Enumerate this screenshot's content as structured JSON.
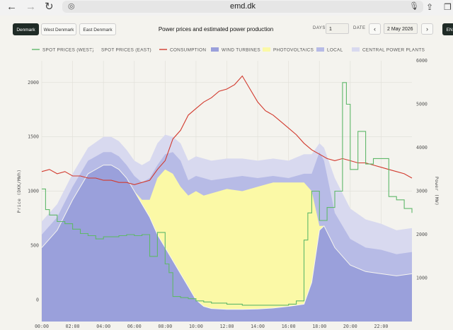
{
  "browser": {
    "url": "emd.dk"
  },
  "toolbar": {
    "regions": [
      "Denmark",
      "West Denmark",
      "East Denmark"
    ],
    "active_region": "Denmark",
    "title": "Power prices and estimated power production",
    "days_label": "DAYS",
    "days_value": "1",
    "date_label": "DATE",
    "date_value": "2 May 2026",
    "lang_label": "EN"
  },
  "colors": {
    "spot_west": "#5fb86a",
    "spot_east": "#f6f5ef",
    "consumption": "#d23a2e",
    "wind": "#9aa0db",
    "pv": "#fbf9a6",
    "local": "#b7bbe6",
    "central": "#d8d9ef"
  },
  "chart_data": {
    "type": "area",
    "legend": [
      "SPOT PRICES (WEST)",
      "SPOT PRICES (EAST)",
      "CONSUMPTION",
      "WIND TURBINES",
      "PHOTOVOLTAICS",
      "LOCAL",
      "CENTRAL POWER PLANTS"
    ],
    "x_ticks": [
      "00:00",
      "02:00",
      "04:00",
      "06:00",
      "08:00",
      "10:00",
      "12:00",
      "14:00",
      "16:00",
      "18:00",
      "20:00",
      "22:00"
    ],
    "xlim": [
      0,
      24
    ],
    "ylabel_left": "Price (DKK/MWh)",
    "ylabel_right": "Power (MW)",
    "ylim_left": [
      -200,
      2200
    ],
    "ylim_right": [
      0,
      6000
    ],
    "yticks_left": [
      0,
      500,
      1000,
      1500,
      2000
    ],
    "yticks_right": [
      1000,
      2000,
      3000,
      4000,
      5000,
      6000
    ],
    "series": [
      {
        "name": "WIND TURBINES",
        "axis": "right",
        "x": [
          0,
          1,
          2,
          3,
          4,
          4.5,
          5,
          5.5,
          6,
          6.5,
          7,
          7.5,
          8,
          8.5,
          9,
          9.5,
          10,
          10.5,
          11,
          12,
          13,
          14,
          15,
          16,
          17,
          17.5,
          18,
          18.3,
          19,
          20,
          21,
          22,
          23,
          24
        ],
        "values": [
          1700,
          2100,
          2800,
          3400,
          3600,
          3600,
          3500,
          3300,
          3000,
          2700,
          2400,
          2000,
          1700,
          1400,
          1100,
          800,
          500,
          350,
          300,
          280,
          280,
          290,
          310,
          350,
          400,
          900,
          2100,
          2200,
          1700,
          1300,
          1150,
          1100,
          1050,
          1100
        ]
      },
      {
        "name": "PHOTOVOLTAICS",
        "axis": "right",
        "x": [
          0,
          1,
          2,
          3,
          4,
          4.5,
          5,
          5.5,
          6,
          6.5,
          7,
          7.5,
          8,
          8.5,
          9,
          9.5,
          10,
          10.5,
          11,
          12,
          13,
          14,
          15,
          16,
          17,
          17.5,
          18,
          18.3,
          19,
          20,
          21,
          22,
          23,
          24
        ],
        "values": [
          1700,
          2100,
          2800,
          3400,
          3600,
          3600,
          3500,
          3300,
          3000,
          2800,
          2800,
          3300,
          3500,
          3400,
          3100,
          2900,
          3000,
          2900,
          2950,
          3050,
          3000,
          3100,
          3200,
          3200,
          3200,
          3000,
          2200,
          2200,
          1700,
          1300,
          1150,
          1100,
          1050,
          1100
        ]
      },
      {
        "name": "LOCAL",
        "axis": "right",
        "x": [
          0,
          1,
          2,
          3,
          4,
          4.5,
          5,
          5.5,
          6,
          6.5,
          7,
          7.5,
          8,
          8.5,
          9,
          9.5,
          10,
          10.5,
          11,
          12,
          13,
          14,
          15,
          16,
          17,
          17.5,
          18,
          18.3,
          19,
          20,
          21,
          22,
          23,
          24
        ],
        "values": [
          2000,
          2400,
          3100,
          3700,
          3900,
          3900,
          3800,
          3600,
          3350,
          3200,
          3300,
          3600,
          3850,
          3900,
          3700,
          3250,
          3350,
          3300,
          3250,
          3300,
          3350,
          3300,
          3350,
          3300,
          3400,
          3400,
          3900,
          3700,
          2500,
          1900,
          1700,
          1650,
          1550,
          1600
        ]
      },
      {
        "name": "CENTRAL POWER PLANTS",
        "axis": "right",
        "x": [
          0,
          1,
          2,
          3,
          4,
          4.5,
          5,
          5.5,
          6,
          6.5,
          7,
          7.5,
          8,
          8.5,
          9,
          9.5,
          10,
          10.5,
          11,
          12,
          13,
          14,
          15,
          16,
          17,
          17.5,
          18,
          18.3,
          19,
          20,
          21,
          22,
          23,
          24
        ],
        "values": [
          2300,
          2700,
          3400,
          4000,
          4250,
          4250,
          4150,
          3950,
          3700,
          3600,
          3700,
          4100,
          4300,
          4250,
          4100,
          3700,
          3800,
          3750,
          3700,
          3750,
          3750,
          3700,
          3750,
          3700,
          3850,
          3850,
          4100,
          4000,
          3300,
          2600,
          2350,
          2250,
          2100,
          2150
        ]
      },
      {
        "name": "CONSUMPTION",
        "axis": "right",
        "x": [
          0,
          0.5,
          1,
          1.5,
          2,
          2.5,
          3,
          3.5,
          4,
          4.5,
          5,
          5.5,
          6,
          6.5,
          7,
          7.5,
          8,
          8.5,
          9,
          9.5,
          10,
          10.5,
          11,
          11.5,
          12,
          12.5,
          13,
          13.5,
          14,
          14.5,
          15,
          15.5,
          16,
          16.5,
          17,
          17.5,
          18,
          18.5,
          19,
          19.5,
          20,
          20.5,
          21,
          21.5,
          22,
          22.5,
          23,
          23.5,
          24
        ],
        "values": [
          3450,
          3500,
          3400,
          3450,
          3350,
          3350,
          3300,
          3300,
          3250,
          3250,
          3200,
          3200,
          3150,
          3200,
          3250,
          3500,
          3700,
          4200,
          4400,
          4750,
          4900,
          5050,
          5150,
          5300,
          5350,
          5450,
          5650,
          5350,
          5050,
          4850,
          4750,
          4600,
          4450,
          4300,
          4100,
          3950,
          3850,
          3750,
          3700,
          3750,
          3700,
          3650,
          3650,
          3600,
          3550,
          3500,
          3450,
          3400,
          3300
        ]
      },
      {
        "name": "SPOT PRICES (WEST)",
        "axis": "left",
        "x": [
          0,
          0.25,
          0.5,
          1,
          1.5,
          2,
          2.5,
          3,
          3.5,
          4,
          4.5,
          5,
          5.5,
          6,
          6.5,
          7,
          7.5,
          8,
          8.25,
          8.5,
          9,
          9.5,
          10,
          10.5,
          11,
          12,
          13,
          14,
          15,
          16,
          16.5,
          17,
          17.25,
          17.5,
          18,
          18.5,
          19,
          19.5,
          19.75,
          20,
          20.5,
          21,
          21.5,
          22,
          22.5,
          23,
          23.5,
          24
        ],
        "values": [
          1020,
          830,
          780,
          720,
          700,
          650,
          610,
          590,
          560,
          580,
          580,
          590,
          600,
          590,
          600,
          400,
          620,
          330,
          250,
          30,
          20,
          10,
          -10,
          -20,
          -30,
          -40,
          -50,
          -50,
          -50,
          -40,
          -10,
          550,
          800,
          1000,
          730,
          850,
          1000,
          2000,
          1800,
          1200,
          1550,
          1250,
          1300,
          1300,
          950,
          920,
          840,
          800
        ]
      }
    ]
  }
}
